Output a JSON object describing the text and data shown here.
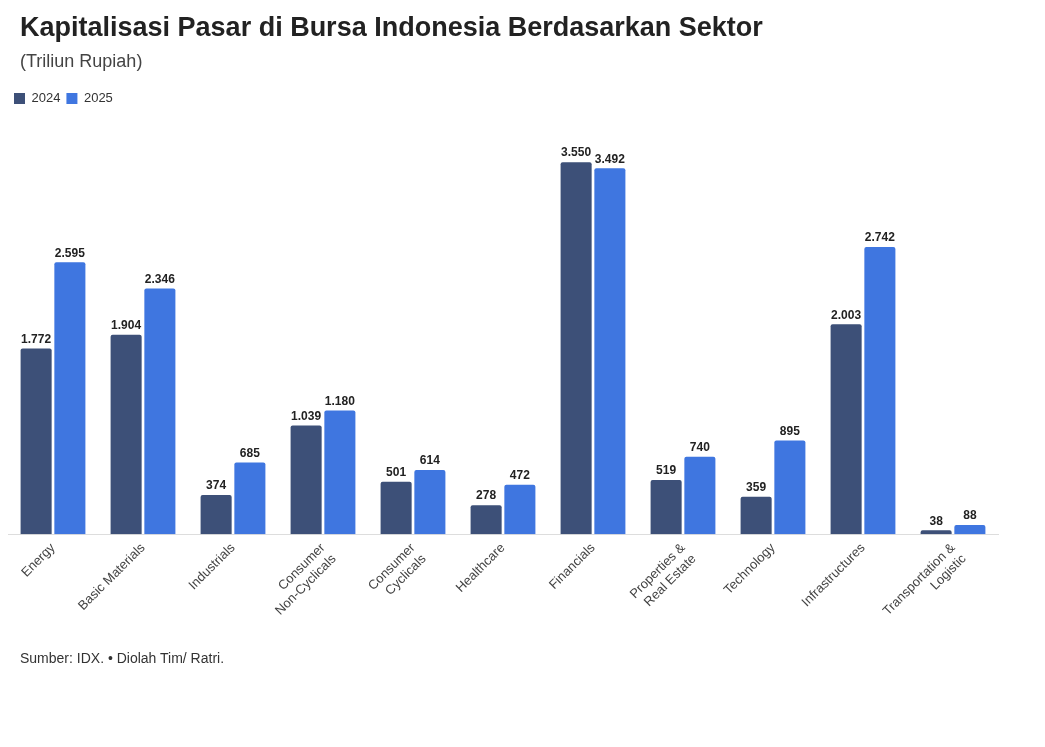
{
  "chart_data": {
    "type": "bar",
    "title": "Kapitalisasi Pasar di Bursa Indonesia Berdasarkan Sektor",
    "subtitle": "(Triliun Rupiah)",
    "categories": [
      "Energy",
      "Basic Materials",
      "Industrials",
      "Consumer Non-Cyclicals",
      "Consumer Cyclicals",
      "Healthcare",
      "Financials",
      "Properties & Real Estate",
      "Technology",
      "Infrastructures",
      "Transportation & Logistic"
    ],
    "series": [
      {
        "name": "2024",
        "color": "#3d5078",
        "values": [
          1772,
          1904,
          374,
          1039,
          501,
          278,
          3550,
          519,
          359,
          2003,
          38
        ],
        "value_labels": [
          "1.772",
          "1.904",
          "374",
          "1.039",
          "501",
          "278",
          "3.550",
          "519",
          "359",
          "2.003",
          "38"
        ]
      },
      {
        "name": "2025",
        "color": "#3f76e0",
        "values": [
          2595,
          2346,
          685,
          1180,
          614,
          472,
          3492,
          740,
          895,
          2742,
          88
        ],
        "value_labels": [
          "2.595",
          "2.346",
          "685",
          "1.180",
          "614",
          "472",
          "3.492",
          "740",
          "895",
          "2.742",
          "88"
        ]
      }
    ],
    "legend": "top left",
    "grid": false,
    "annotations": [
      "Sumber: IDX. • Diolah Tim/ Ratri."
    ]
  }
}
